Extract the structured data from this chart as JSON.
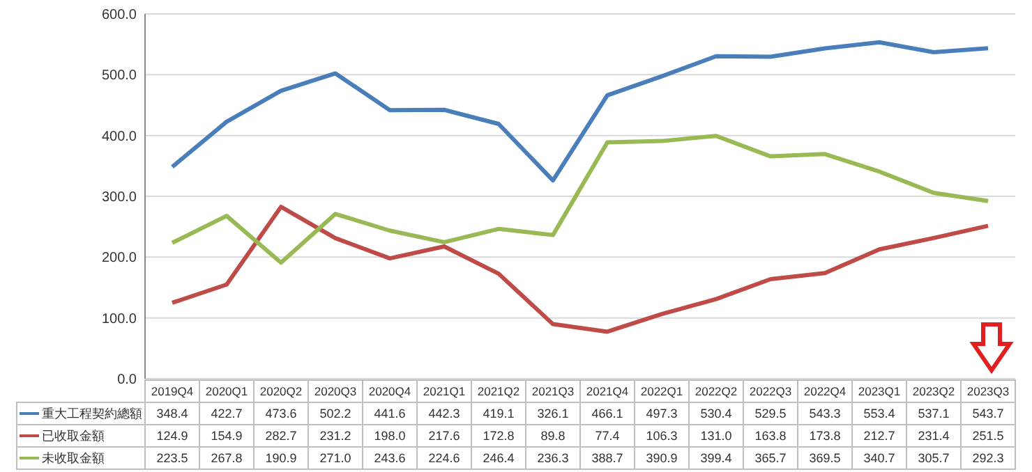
{
  "chart_data": {
    "type": "line",
    "categories": [
      "2019Q4",
      "2020Q1",
      "2020Q2",
      "2020Q3",
      "2020Q4",
      "2021Q1",
      "2021Q2",
      "2021Q3",
      "2021Q4",
      "2022Q1",
      "2022Q2",
      "2022Q3",
      "2022Q4",
      "2023Q1",
      "2023Q2",
      "2023Q3"
    ],
    "series": [
      {
        "name": "重大工程契約總額",
        "color": "#4a7ebb",
        "values": [
          348.4,
          422.7,
          473.6,
          502.2,
          441.6,
          442.3,
          419.1,
          326.1,
          466.1,
          497.3,
          530.4,
          529.5,
          543.3,
          553.4,
          537.1,
          543.7
        ],
        "value_labels": [
          "348.4",
          "422.7",
          "473.6",
          "502.2",
          "441.6",
          "442.3",
          "419.1",
          "326.1",
          "466.1",
          "497.3",
          "530.4",
          "529.5",
          "543.3",
          "553.4",
          "537.1",
          "543.7"
        ]
      },
      {
        "name": "已收取金額",
        "color": "#be4b48",
        "values": [
          124.9,
          154.9,
          282.7,
          231.2,
          198.0,
          217.6,
          172.8,
          89.8,
          77.4,
          106.3,
          131.0,
          163.8,
          173.8,
          212.7,
          231.4,
          251.5
        ],
        "value_labels": [
          "124.9",
          "154.9",
          "282.7",
          "231.2",
          "198.0",
          "217.6",
          "172.8",
          "89.8",
          "77.4",
          "106.3",
          "131.0",
          "163.8",
          "173.8",
          "212.7",
          "231.4",
          "251.5"
        ]
      },
      {
        "name": "未收取金額",
        "color": "#98b954",
        "values": [
          223.5,
          267.8,
          190.9,
          271.0,
          243.6,
          224.6,
          246.4,
          236.3,
          388.7,
          390.9,
          399.4,
          365.7,
          369.5,
          340.7,
          305.7,
          292.3
        ],
        "value_labels": [
          "223.5",
          "267.8",
          "190.9",
          "271.0",
          "243.6",
          "224.6",
          "246.4",
          "236.3",
          "388.7",
          "390.9",
          "399.4",
          "365.7",
          "369.5",
          "340.7",
          "305.7",
          "292.3"
        ]
      }
    ],
    "ylim": [
      0,
      600
    ],
    "yticks": [
      {
        "value": 0,
        "label": "0.0"
      },
      {
        "value": 100,
        "label": "100.0"
      },
      {
        "value": 200,
        "label": "200.0"
      },
      {
        "value": 300,
        "label": "300.0"
      },
      {
        "value": 400,
        "label": "400.0"
      },
      {
        "value": 500,
        "label": "500.0"
      },
      {
        "value": 600,
        "label": "600.0"
      }
    ],
    "grid": "y",
    "legend": "bottom",
    "marker": "none",
    "line_style": "solid"
  }
}
